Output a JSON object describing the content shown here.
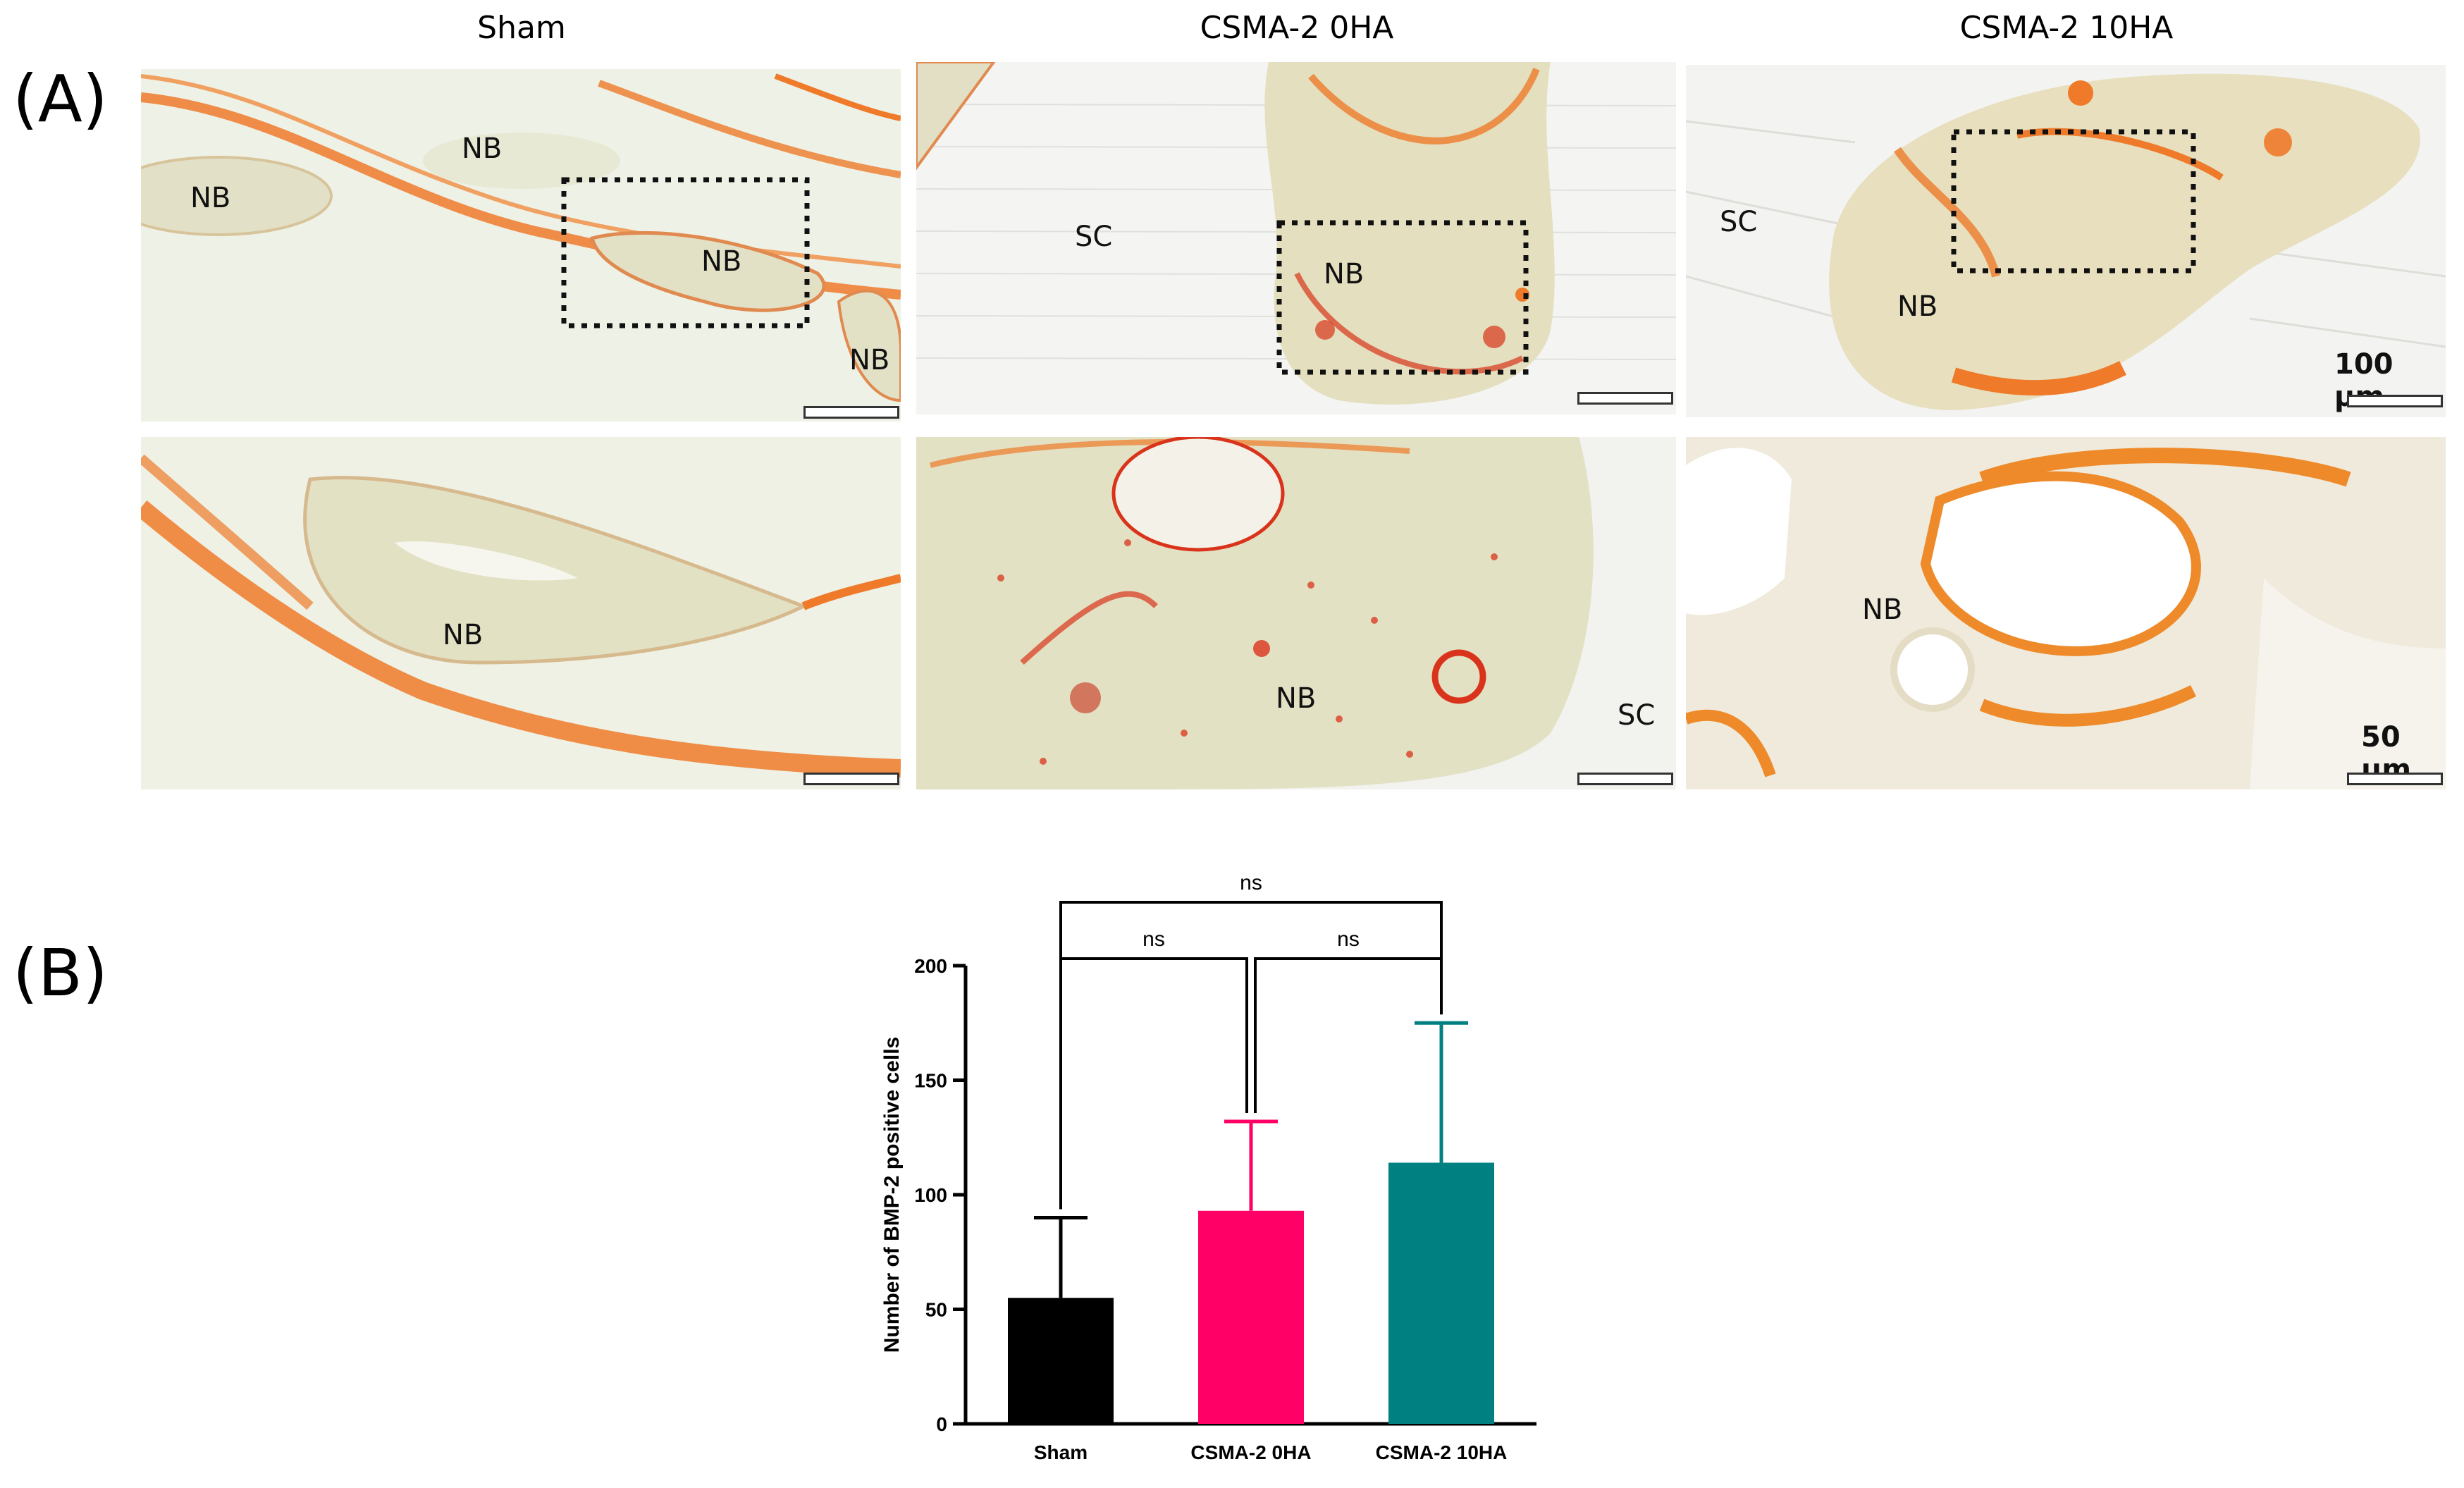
{
  "panels": {
    "a_label": "(A)",
    "b_label": "(B)"
  },
  "histology": {
    "columns": [
      "Sham",
      "CSMA-2 0HA",
      "CSMA-2 10HA"
    ],
    "tissue_labels": {
      "sham_top": [
        "NB",
        "NB",
        "NB",
        "NB"
      ],
      "sham_bottom": [
        "NB"
      ],
      "ha0_top": [
        "SC",
        "NB"
      ],
      "ha0_bottom": [
        "NB",
        "SC"
      ],
      "ha10_top": [
        "SC",
        "NB"
      ],
      "ha10_bottom": [
        "NB"
      ]
    },
    "scale_top": "100 μm",
    "scale_bottom": "50 μm",
    "colors": {
      "stain_orange": "#ee7a2a",
      "stain_red": "#d9341b",
      "tissue_bg": "#eef0e4",
      "bone_tissue": "#e0dfc4",
      "roi_box": "#111111"
    }
  },
  "chart_data": {
    "type": "bar",
    "categories": [
      "Sham",
      "CSMA-2 0HA",
      "CSMA-2 10HA"
    ],
    "values": [
      55,
      93,
      114
    ],
    "error_upper": [
      90,
      132,
      175
    ],
    "bar_colors": [
      "#000000",
      "#ff0066",
      "#008080"
    ],
    "ylabel": "Number of BMP-2 positive cells",
    "xlabel": "",
    "ylim": [
      0,
      200
    ],
    "yticks": [
      0,
      50,
      100,
      150,
      200
    ],
    "comparisons": [
      {
        "from": 0,
        "to": 2,
        "label": "ns"
      },
      {
        "from": 0,
        "to": 1,
        "label": "ns"
      },
      {
        "from": 1,
        "to": 2,
        "label": "ns"
      }
    ]
  }
}
